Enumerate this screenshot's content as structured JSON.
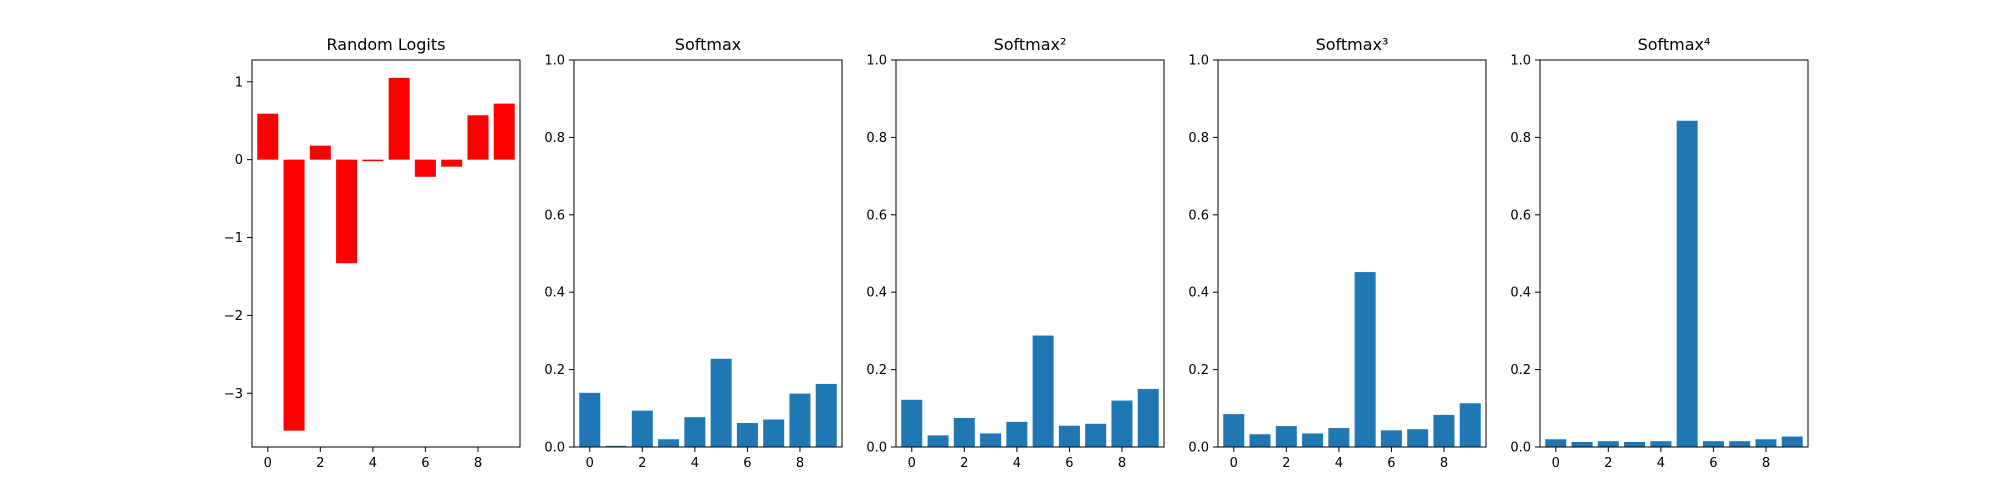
{
  "chart_data": [
    {
      "type": "bar",
      "title": "Random Logits",
      "xlabel": "",
      "ylabel": "",
      "color": "#ff0000",
      "x": [
        0,
        1,
        2,
        3,
        4,
        5,
        6,
        7,
        8,
        9
      ],
      "values": [
        0.59,
        -3.48,
        0.18,
        -1.33,
        -0.02,
        1.05,
        -0.22,
        -0.09,
        0.57,
        0.72
      ],
      "xlim": [
        -0.6,
        9.6
      ],
      "ylim": [
        -3.69,
        1.28
      ],
      "xticks": [
        0,
        2,
        4,
        6,
        8
      ],
      "yticks": [
        -3,
        -2,
        -1,
        0,
        1
      ],
      "ytick_labels": [
        "−3",
        "−2",
        "−1",
        "0",
        "1"
      ],
      "grid": false
    },
    {
      "type": "bar",
      "title": "Softmax",
      "xlabel": "",
      "ylabel": "",
      "color": "#1f77b4",
      "x": [
        0,
        1,
        2,
        3,
        4,
        5,
        6,
        7,
        8,
        9
      ],
      "values": [
        0.14,
        0.003,
        0.094,
        0.02,
        0.077,
        0.228,
        0.062,
        0.071,
        0.138,
        0.163
      ],
      "xlim": [
        -0.6,
        9.6
      ],
      "ylim": [
        0,
        1.0
      ],
      "xticks": [
        0,
        2,
        4,
        6,
        8
      ],
      "yticks": [
        0.0,
        0.2,
        0.4,
        0.6,
        0.8,
        1.0
      ],
      "ytick_labels": [
        "0.0",
        "0.2",
        "0.4",
        "0.6",
        "0.8",
        "1.0"
      ],
      "grid": false
    },
    {
      "type": "bar",
      "title": "Softmax²",
      "xlabel": "",
      "ylabel": "",
      "color": "#1f77b4",
      "x": [
        0,
        1,
        2,
        3,
        4,
        5,
        6,
        7,
        8,
        9
      ],
      "values": [
        0.122,
        0.03,
        0.075,
        0.035,
        0.065,
        0.288,
        0.055,
        0.06,
        0.12,
        0.15
      ],
      "xlim": [
        -0.6,
        9.6
      ],
      "ylim": [
        0,
        1.0
      ],
      "xticks": [
        0,
        2,
        4,
        6,
        8
      ],
      "yticks": [
        0.0,
        0.2,
        0.4,
        0.6,
        0.8,
        1.0
      ],
      "ytick_labels": [
        "0.0",
        "0.2",
        "0.4",
        "0.6",
        "0.8",
        "1.0"
      ],
      "grid": false
    },
    {
      "type": "bar",
      "title": "Softmax³",
      "xlabel": "",
      "ylabel": "",
      "color": "#1f77b4",
      "x": [
        0,
        1,
        2,
        3,
        4,
        5,
        6,
        7,
        8,
        9
      ],
      "values": [
        0.085,
        0.033,
        0.054,
        0.035,
        0.049,
        0.452,
        0.043,
        0.046,
        0.083,
        0.113
      ],
      "xlim": [
        -0.6,
        9.6
      ],
      "ylim": [
        0,
        1.0
      ],
      "xticks": [
        0,
        2,
        4,
        6,
        8
      ],
      "yticks": [
        0.0,
        0.2,
        0.4,
        0.6,
        0.8,
        1.0
      ],
      "ytick_labels": [
        "0.0",
        "0.2",
        "0.4",
        "0.6",
        "0.8",
        "1.0"
      ],
      "grid": false
    },
    {
      "type": "bar",
      "title": "Softmax⁴",
      "xlabel": "",
      "ylabel": "",
      "color": "#1f77b4",
      "x": [
        0,
        1,
        2,
        3,
        4,
        5,
        6,
        7,
        8,
        9
      ],
      "values": [
        0.02,
        0.013,
        0.015,
        0.013,
        0.015,
        0.843,
        0.015,
        0.015,
        0.02,
        0.027
      ],
      "xlim": [
        -0.6,
        9.6
      ],
      "ylim": [
        0,
        1.0
      ],
      "xticks": [
        0,
        2,
        4,
        6,
        8
      ],
      "yticks": [
        0.0,
        0.2,
        0.4,
        0.6,
        0.8,
        1.0
      ],
      "ytick_labels": [
        "0.0",
        "0.2",
        "0.4",
        "0.6",
        "0.8",
        "1.0"
      ],
      "grid": false
    }
  ]
}
